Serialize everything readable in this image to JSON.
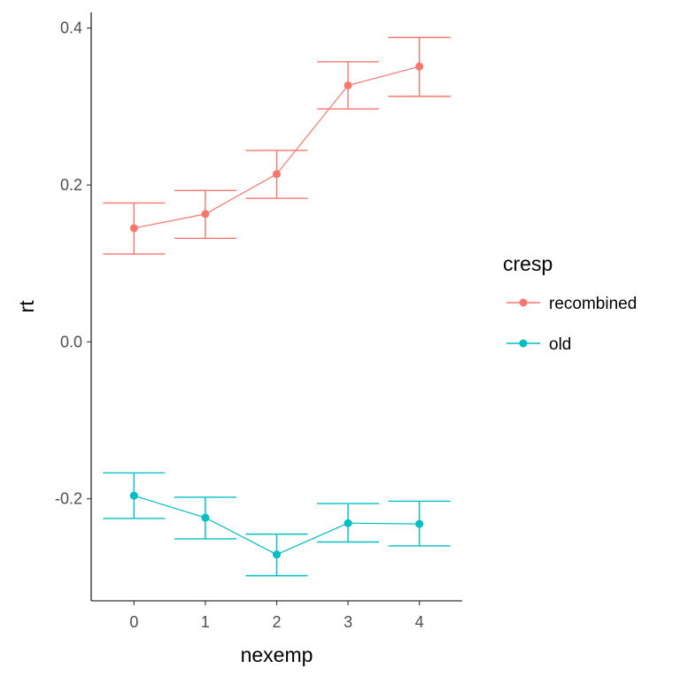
{
  "chart_data": {
    "type": "line",
    "xlabel": "nexemp",
    "ylabel": "rt",
    "x": [
      0,
      1,
      2,
      3,
      4
    ],
    "x_tick_labels": [
      "0",
      "1",
      "2",
      "3",
      "4"
    ],
    "xlim": [
      -0.6,
      4.6
    ],
    "ylim": [
      -0.33,
      0.42
    ],
    "y_ticks": [
      -0.2,
      0.0,
      0.2,
      0.4
    ],
    "y_tick_labels": [
      "-0.2",
      "0.0",
      "0.2",
      "0.4"
    ],
    "grid": false,
    "legend": {
      "title": "cresp",
      "placement": "right"
    },
    "error_bars": true,
    "series": [
      {
        "name": "recombined",
        "color": "#F8766D",
        "values": [
          0.145,
          0.163,
          0.214,
          0.327,
          0.351
        ],
        "lower": [
          0.112,
          0.132,
          0.183,
          0.297,
          0.313
        ],
        "upper": [
          0.177,
          0.193,
          0.244,
          0.357,
          0.388
        ]
      },
      {
        "name": "old",
        "color": "#00BFC4",
        "values": [
          -0.196,
          -0.224,
          -0.271,
          -0.231,
          -0.232
        ],
        "lower": [
          -0.225,
          -0.251,
          -0.298,
          -0.255,
          -0.26
        ],
        "upper": [
          -0.167,
          -0.198,
          -0.245,
          -0.206,
          -0.203
        ]
      }
    ]
  }
}
